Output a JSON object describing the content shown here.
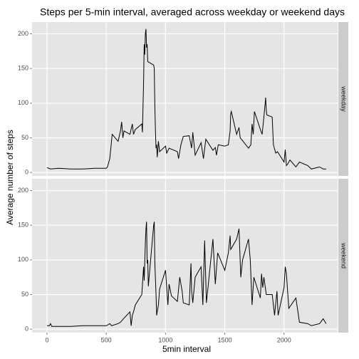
{
  "title": "Steps per 5-min interval, averaged across  weekday or weekend days",
  "x_label": "5min interval",
  "y_label": "Average number of steps",
  "chart_data": [
    {
      "type": "line",
      "facet": "weekday",
      "color": "#000000",
      "grid": true,
      "xlim": [
        -126,
        2452
      ],
      "ylim": [
        -5,
        217
      ],
      "xticks": [
        0,
        500,
        1000,
        1500,
        2000
      ],
      "yticks": [
        0,
        50,
        100,
        150,
        200
      ],
      "x": [
        0,
        30,
        100,
        200,
        300,
        400,
        500,
        510,
        530,
        550,
        600,
        620,
        630,
        640,
        650,
        700,
        720,
        730,
        745,
        800,
        805,
        815,
        820,
        825,
        830,
        835,
        840,
        845,
        850,
        900,
        905,
        910,
        915,
        920,
        925,
        930,
        940,
        950,
        1000,
        1010,
        1030,
        1100,
        1110,
        1130,
        1150,
        1200,
        1220,
        1230,
        1250,
        1300,
        1320,
        1340,
        1400,
        1420,
        1430,
        1445,
        1500,
        1530,
        1545,
        1550,
        1555,
        1600,
        1620,
        1630,
        1640,
        1700,
        1720,
        1730,
        1740,
        1750,
        1800,
        1815,
        1830,
        1845,
        1850,
        1855,
        1900,
        1910,
        1930,
        1945,
        2000,
        2010,
        2020,
        2030,
        2050,
        2100,
        2130,
        2200,
        2230,
        2300,
        2330,
        2355
      ],
      "values": [
        7,
        5,
        6,
        5,
        5,
        6,
        6,
        8,
        20,
        55,
        45,
        60,
        73,
        50,
        60,
        55,
        70,
        55,
        62,
        70,
        58,
        130,
        185,
        170,
        200,
        207,
        180,
        185,
        160,
        155,
        150,
        95,
        60,
        35,
        40,
        22,
        45,
        30,
        38,
        28,
        35,
        30,
        20,
        40,
        52,
        53,
        35,
        58,
        25,
        43,
        20,
        48,
        32,
        36,
        25,
        40,
        38,
        40,
        60,
        85,
        88,
        55,
        65,
        50,
        48,
        35,
        40,
        70,
        55,
        88,
        62,
        55,
        80,
        108,
        90,
        83,
        80,
        40,
        28,
        30,
        15,
        33,
        10,
        12,
        18,
        8,
        15,
        10,
        5,
        8,
        5,
        5
      ]
    },
    {
      "type": "line",
      "facet": "weekend",
      "color": "#000000",
      "grid": true,
      "xlim": [
        -126,
        2452
      ],
      "ylim": [
        -5,
        217
      ],
      "xticks": [
        0,
        500,
        1000,
        1500,
        2000
      ],
      "yticks": [
        0,
        50,
        100,
        150,
        200
      ],
      "x": [
        0,
        20,
        30,
        40,
        100,
        200,
        300,
        400,
        500,
        530,
        545,
        600,
        620,
        645,
        700,
        710,
        720,
        730,
        745,
        800,
        815,
        820,
        830,
        835,
        840,
        845,
        850,
        855,
        900,
        905,
        910,
        920,
        925,
        940,
        950,
        1000,
        1010,
        1020,
        1030,
        1050,
        1100,
        1120,
        1140,
        1150,
        1200,
        1215,
        1220,
        1230,
        1250,
        1300,
        1315,
        1330,
        1345,
        1400,
        1420,
        1440,
        1500,
        1530,
        1545,
        1550,
        1600,
        1620,
        1635,
        1650,
        1700,
        1715,
        1730,
        1745,
        1800,
        1810,
        1820,
        1830,
        1850,
        1900,
        1920,
        1940,
        1950,
        2000,
        2010,
        2020,
        2040,
        2100,
        2130,
        2200,
        2230,
        2300,
        2330,
        2355
      ],
      "values": [
        5,
        5,
        8,
        4,
        4,
        4,
        5,
        5,
        5,
        8,
        5,
        8,
        10,
        15,
        25,
        5,
        20,
        25,
        35,
        50,
        90,
        70,
        125,
        145,
        155,
        95,
        100,
        62,
        150,
        155,
        95,
        50,
        20,
        35,
        58,
        85,
        60,
        35,
        65,
        48,
        40,
        75,
        55,
        38,
        35,
        95,
        55,
        38,
        75,
        90,
        35,
        128,
        38,
        130,
        65,
        110,
        85,
        110,
        135,
        115,
        130,
        145,
        75,
        100,
        130,
        100,
        35,
        75,
        45,
        80,
        60,
        75,
        50,
        50,
        20,
        55,
        20,
        60,
        90,
        80,
        30,
        45,
        10,
        8,
        5,
        8,
        15,
        8
      ]
    }
  ]
}
